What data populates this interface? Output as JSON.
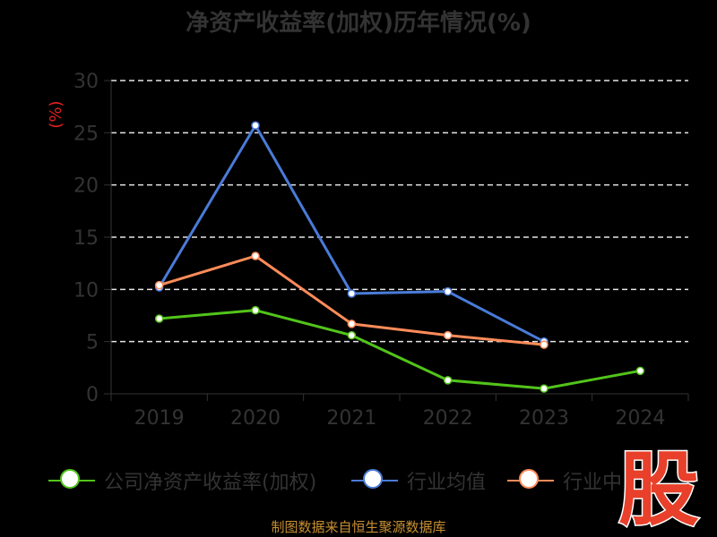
{
  "chart_data": {
    "type": "line",
    "title": "净资产收益率(加权)历年情况(%)",
    "ylabel": "(%)",
    "categories": [
      "2019",
      "2020",
      "2021",
      "2022",
      "2023",
      "2024"
    ],
    "ylim": [
      0,
      30
    ],
    "yticks": [
      0,
      5,
      10,
      15,
      20,
      25,
      30
    ],
    "grid": "horizontal-dashed",
    "legend_placement": "bottom",
    "series": [
      {
        "name": "公司净资产收益率(加权)",
        "color": "#52c41a",
        "values": [
          7.2,
          8.0,
          5.6,
          1.3,
          0.5,
          2.2
        ]
      },
      {
        "name": "行业均值",
        "color": "#4a7bd8",
        "values": [
          10.2,
          25.7,
          9.6,
          9.8,
          5.0,
          null
        ]
      },
      {
        "name": "行业中位数",
        "color": "#ff8c5a",
        "values": [
          10.4,
          13.2,
          6.7,
          5.6,
          4.7,
          null
        ]
      }
    ]
  },
  "legend": {
    "items": [
      {
        "label": "公司净资产收益率(加权)",
        "color": "#52c41a"
      },
      {
        "label": "行业均值",
        "color": "#4a7bd8"
      },
      {
        "label": "行业中",
        "color": "#ff8c5a"
      }
    ]
  },
  "source_text": "制图数据来自恒生聚源数据库",
  "watermark_text": "股"
}
